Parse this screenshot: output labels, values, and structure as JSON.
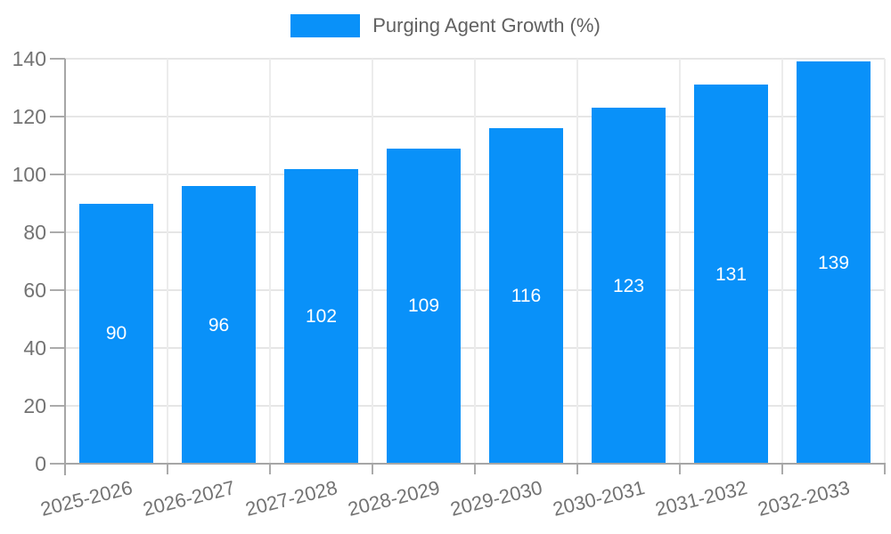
{
  "chart_data": {
    "type": "bar",
    "title": "Purging Agent Growth (%)",
    "legend": {
      "label": "Purging Agent Growth (%)",
      "position": "top"
    },
    "categories": [
      "2025-2026",
      "2026-2027",
      "2027-2028",
      "2028-2029",
      "2029-2030",
      "2030-2031",
      "2031-2032",
      "2032-2033"
    ],
    "values": [
      90,
      96,
      102,
      109,
      116,
      123,
      131,
      139
    ],
    "bar_value_labels_shown": true,
    "xlabel": "",
    "ylabel": "",
    "ylim": [
      0,
      140
    ],
    "yticks": [
      0,
      20,
      40,
      60,
      80,
      100,
      120,
      140
    ],
    "grid": true,
    "x_tick_rotation_deg": -14,
    "colors": {
      "bar": "#0991f9",
      "bar_value_label": "#ffffff",
      "axis_text": "#737373",
      "legend_text": "#616161",
      "gridline": "#e6e6e6",
      "axis_line": "#a6a6a6"
    }
  }
}
